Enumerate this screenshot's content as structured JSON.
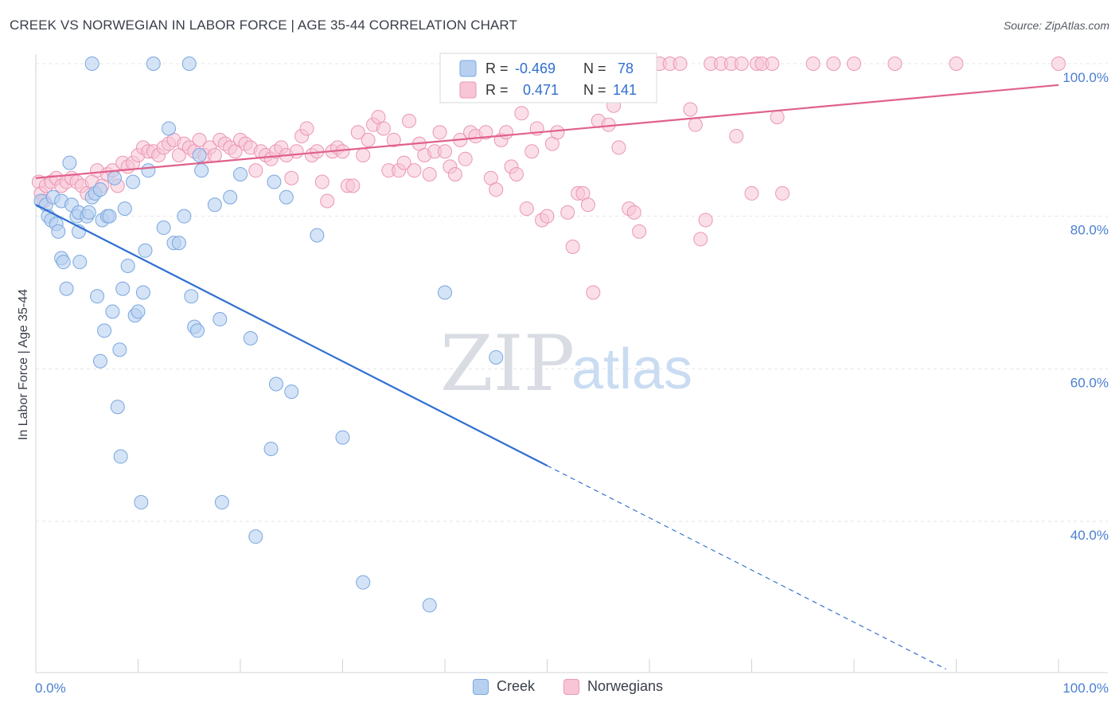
{
  "header": {
    "title": "CREEK VS NORWEGIAN IN LABOR FORCE | AGE 35-44 CORRELATION CHART",
    "source": "Source: ZipAtlas.com"
  },
  "watermark": {
    "part1": "ZIP",
    "part2": "atlas"
  },
  "legend_stats": [
    {
      "r_label": "R =",
      "r_value": "-0.469",
      "n_label": "N =",
      "n_value": "78"
    },
    {
      "r_label": "R =",
      "r_value": "0.471",
      "n_label": "N =",
      "n_value": "141"
    }
  ],
  "bottom_legend": {
    "creek": "Creek",
    "norwegians": "Norwegians"
  },
  "colors": {
    "creek_fill": "#b8d0f0",
    "creek_stroke": "#7aa7e0",
    "creek_line": "#2f6fd0",
    "norw_fill": "#f7c5d6",
    "norw_stroke": "#eb96b4",
    "norw_line": "#e0608c",
    "tick_text": "#4a7fd1",
    "grid": "#e3e6ea"
  },
  "chart_data": {
    "type": "scatter",
    "title": "CREEK VS NORWEGIAN IN LABOR FORCE | AGE 35-44 CORRELATION CHART",
    "xlabel": "",
    "ylabel": "In Labor Force | Age 35-44",
    "xlim": [
      0,
      100
    ],
    "ylim": [
      22,
      102
    ],
    "x_tick_labels": [
      "0.0%",
      "100.0%"
    ],
    "y_ticks": [
      40,
      60,
      80,
      100
    ],
    "y_tick_labels": [
      "40.0%",
      "60.0%",
      "80.0%",
      "100.0%"
    ],
    "grid": true,
    "legend_position": "top-center",
    "series": [
      {
        "name": "Creek",
        "r": -0.469,
        "n": 78,
        "trend": {
          "x0": 0,
          "y0": 81.5,
          "x1": 50,
          "y1": 47.3,
          "dash_x_end": 89
        },
        "points": [
          [
            0.5,
            82.0
          ],
          [
            1,
            81.5
          ],
          [
            1.2,
            80
          ],
          [
            1.5,
            79.5
          ],
          [
            1.7,
            82.5
          ],
          [
            2,
            79
          ],
          [
            2.2,
            78
          ],
          [
            2.5,
            82
          ],
          [
            2.5,
            74.5
          ],
          [
            2.7,
            74
          ],
          [
            3,
            70.5
          ],
          [
            3.3,
            87
          ],
          [
            3.5,
            81.5
          ],
          [
            4,
            80
          ],
          [
            4.2,
            80.5
          ],
          [
            4.2,
            78
          ],
          [
            4.3,
            74
          ],
          [
            5,
            80
          ],
          [
            5.2,
            80.5
          ],
          [
            5.5,
            100
          ],
          [
            5.5,
            82.5
          ],
          [
            5.8,
            83
          ],
          [
            6,
            69.5
          ],
          [
            6.3,
            83.5
          ],
          [
            6.3,
            61
          ],
          [
            6.5,
            79.5
          ],
          [
            6.7,
            65
          ],
          [
            7,
            80
          ],
          [
            7.2,
            80
          ],
          [
            7.5,
            67.5
          ],
          [
            7.7,
            85
          ],
          [
            8,
            55
          ],
          [
            8.2,
            62.5
          ],
          [
            8.3,
            48.5
          ],
          [
            8.5,
            70.5
          ],
          [
            8.7,
            81
          ],
          [
            9,
            73.5
          ],
          [
            9.5,
            84.5
          ],
          [
            9.7,
            67
          ],
          [
            10,
            67.5
          ],
          [
            10.3,
            42.5
          ],
          [
            10.5,
            70
          ],
          [
            10.7,
            75.5
          ],
          [
            11,
            86
          ],
          [
            11.5,
            100
          ],
          [
            12.5,
            78.5
          ],
          [
            13,
            91.5
          ],
          [
            13.5,
            76.5
          ],
          [
            14,
            76.5
          ],
          [
            14.5,
            80
          ],
          [
            15,
            100
          ],
          [
            15.2,
            69.5
          ],
          [
            15.5,
            65.5
          ],
          [
            15.8,
            65
          ],
          [
            16,
            88
          ],
          [
            16.2,
            86
          ],
          [
            17.5,
            81.5
          ],
          [
            18,
            66.5
          ],
          [
            18.2,
            42.5
          ],
          [
            19,
            82.5
          ],
          [
            20,
            85.5
          ],
          [
            21,
            64
          ],
          [
            21.5,
            38
          ],
          [
            23,
            49.5
          ],
          [
            23.3,
            84.5
          ],
          [
            23.5,
            58
          ],
          [
            24.5,
            82.5
          ],
          [
            25,
            57
          ],
          [
            27.5,
            77.5
          ],
          [
            30,
            51
          ],
          [
            32,
            32
          ],
          [
            38.5,
            29
          ],
          [
            40,
            70
          ],
          [
            45,
            61.5
          ]
        ]
      },
      {
        "name": "Norwegians",
        "r": 0.471,
        "n": 141,
        "trend": {
          "x0": 0,
          "y0": 85.0,
          "x1": 100,
          "y1": 97.2
        },
        "points": [
          [
            0.3,
            84.5
          ],
          [
            0.5,
            83
          ],
          [
            0.8,
            82
          ],
          [
            1,
            84
          ],
          [
            1.5,
            84.5
          ],
          [
            2,
            85
          ],
          [
            2.5,
            84
          ],
          [
            3,
            84.5
          ],
          [
            3.5,
            85
          ],
          [
            4,
            84.5
          ],
          [
            4.5,
            84
          ],
          [
            5,
            83
          ],
          [
            5.5,
            84.5
          ],
          [
            6,
            86
          ],
          [
            6.5,
            84
          ],
          [
            7,
            85.5
          ],
          [
            7.5,
            86
          ],
          [
            8,
            84
          ],
          [
            8.5,
            87
          ],
          [
            9,
            86.5
          ],
          [
            9.5,
            87
          ],
          [
            10,
            88
          ],
          [
            10.5,
            89
          ],
          [
            11,
            88.5
          ],
          [
            11.5,
            88.5
          ],
          [
            12,
            88
          ],
          [
            12.5,
            89
          ],
          [
            13,
            89.5
          ],
          [
            13.5,
            90
          ],
          [
            14,
            88
          ],
          [
            14.5,
            89.5
          ],
          [
            15,
            89
          ],
          [
            15.5,
            88.5
          ],
          [
            16,
            90
          ],
          [
            16.5,
            88
          ],
          [
            17,
            89
          ],
          [
            17.5,
            88
          ],
          [
            18,
            90
          ],
          [
            18.5,
            89.5
          ],
          [
            19,
            89
          ],
          [
            19.5,
            88.5
          ],
          [
            20,
            90
          ],
          [
            20.5,
            89.5
          ],
          [
            21,
            89
          ],
          [
            21.5,
            86
          ],
          [
            22,
            88.5
          ],
          [
            22.5,
            88
          ],
          [
            23,
            87.5
          ],
          [
            23.5,
            88.5
          ],
          [
            24,
            89
          ],
          [
            24.5,
            88
          ],
          [
            25,
            85
          ],
          [
            25.5,
            88.5
          ],
          [
            26,
            90.5
          ],
          [
            26.5,
            91.5
          ],
          [
            27,
            88
          ],
          [
            27.5,
            88.5
          ],
          [
            28,
            84.5
          ],
          [
            28.5,
            82
          ],
          [
            29,
            88.5
          ],
          [
            29.5,
            89
          ],
          [
            30,
            88.5
          ],
          [
            30.5,
            84
          ],
          [
            31,
            84
          ],
          [
            31.5,
            91
          ],
          [
            32,
            88
          ],
          [
            32.5,
            90
          ],
          [
            33,
            92
          ],
          [
            33.5,
            93
          ],
          [
            34,
            91.5
          ],
          [
            34.5,
            86
          ],
          [
            35,
            90
          ],
          [
            35.5,
            86
          ],
          [
            36,
            87
          ],
          [
            36.5,
            92.5
          ],
          [
            37,
            86
          ],
          [
            37.5,
            89.5
          ],
          [
            38,
            88
          ],
          [
            38.5,
            85.5
          ],
          [
            39,
            88.5
          ],
          [
            39.5,
            91
          ],
          [
            40,
            88.5
          ],
          [
            40.5,
            86.5
          ],
          [
            41,
            85.5
          ],
          [
            41.5,
            90
          ],
          [
            42,
            87.5
          ],
          [
            42.5,
            91
          ],
          [
            43,
            90.5
          ],
          [
            44,
            91
          ],
          [
            44.5,
            85
          ],
          [
            45,
            83.5
          ],
          [
            45.5,
            90
          ],
          [
            46,
            91
          ],
          [
            46.5,
            86.5
          ],
          [
            47,
            85.5
          ],
          [
            47.5,
            93.5
          ],
          [
            48,
            81
          ],
          [
            48.5,
            88.5
          ],
          [
            49,
            91.5
          ],
          [
            49.5,
            79.5
          ],
          [
            50,
            80
          ],
          [
            50.5,
            89.5
          ],
          [
            51,
            91
          ],
          [
            52,
            80.5
          ],
          [
            52.5,
            76
          ],
          [
            53,
            83
          ],
          [
            53.5,
            83
          ],
          [
            54,
            81.5
          ],
          [
            54.5,
            70
          ],
          [
            55,
            92.5
          ],
          [
            55.5,
            98
          ],
          [
            56,
            92
          ],
          [
            56.5,
            94.5
          ],
          [
            57,
            89
          ],
          [
            57.5,
            96.5
          ],
          [
            58,
            81
          ],
          [
            58.5,
            80.5
          ],
          [
            59,
            78
          ],
          [
            60,
            100
          ],
          [
            61,
            100
          ],
          [
            62,
            100
          ],
          [
            63,
            100
          ],
          [
            64,
            94
          ],
          [
            64.5,
            92
          ],
          [
            65,
            77
          ],
          [
            65.5,
            79.5
          ],
          [
            66,
            100
          ],
          [
            67,
            100
          ],
          [
            68,
            100
          ],
          [
            68.5,
            90.5
          ],
          [
            69,
            100
          ],
          [
            70,
            83
          ],
          [
            70.5,
            100
          ],
          [
            71,
            100
          ],
          [
            72,
            100
          ],
          [
            72.5,
            93
          ],
          [
            73,
            83
          ],
          [
            76,
            100
          ],
          [
            78,
            100
          ],
          [
            80,
            100
          ],
          [
            84,
            100
          ],
          [
            90,
            100
          ],
          [
            100,
            100
          ]
        ]
      }
    ]
  }
}
